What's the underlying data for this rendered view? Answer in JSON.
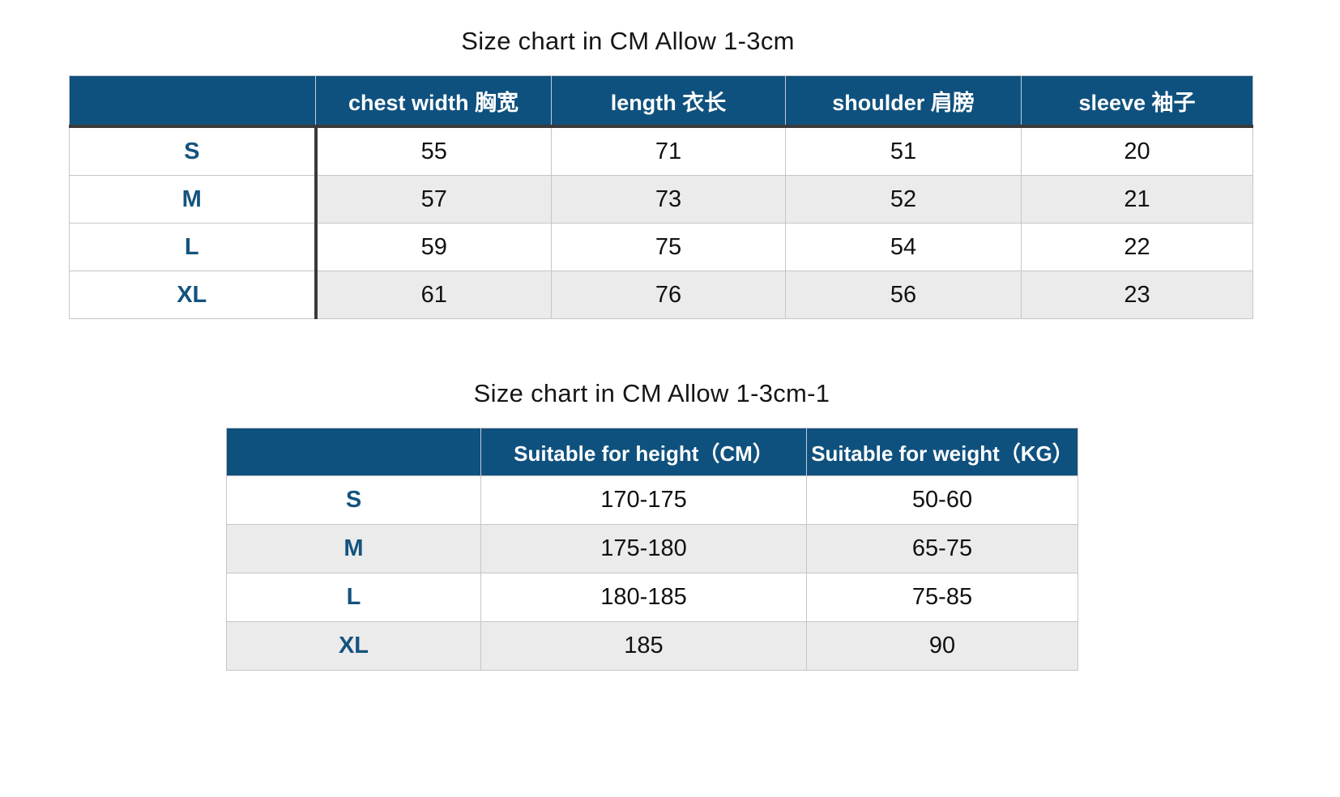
{
  "colors": {
    "header_bg": "#0f517e",
    "header_text": "#ffffff",
    "size_label": "#14537e",
    "stripe": "#ebebeb",
    "dark_border": "#3a3a3a",
    "light_border": "#c6c6c6",
    "title_text": "#161616",
    "value_text": "#111111"
  },
  "table1": {
    "title": "Size chart in CM Allow 1-3cm",
    "headers": [
      "",
      "chest width 胸宽",
      "length 衣长",
      "shoulder 肩膀",
      "sleeve 袖子"
    ],
    "rows": [
      {
        "size": "S",
        "cells": [
          "55",
          "71",
          "51",
          "20"
        ]
      },
      {
        "size": "M",
        "cells": [
          "57",
          "73",
          "52",
          "21"
        ]
      },
      {
        "size": "L",
        "cells": [
          "59",
          "75",
          "54",
          "22"
        ]
      },
      {
        "size": "XL",
        "cells": [
          "61",
          "76",
          "56",
          "23"
        ]
      }
    ]
  },
  "table2": {
    "title": "Size chart in CM Allow 1-3cm-1",
    "headers": [
      "",
      "Suitable for height（CM）",
      "Suitable for weight（KG）"
    ],
    "rows": [
      {
        "size": "S",
        "cells": [
          "170-175",
          "50-60"
        ]
      },
      {
        "size": "M",
        "cells": [
          "175-180",
          "65-75"
        ]
      },
      {
        "size": "L",
        "cells": [
          "180-185",
          "75-85"
        ]
      },
      {
        "size": "XL",
        "cells": [
          "185",
          "90"
        ]
      }
    ]
  },
  "chart_data": [
    {
      "type": "table",
      "title": "Size chart in CM Allow 1-3cm",
      "columns": [
        "size",
        "chest width 胸宽",
        "length 衣长",
        "shoulder 肩膀",
        "sleeve 袖子"
      ],
      "rows": [
        [
          "S",
          55,
          71,
          51,
          20
        ],
        [
          "M",
          57,
          73,
          52,
          21
        ],
        [
          "L",
          59,
          75,
          54,
          22
        ],
        [
          "XL",
          61,
          76,
          56,
          23
        ]
      ]
    },
    {
      "type": "table",
      "title": "Size chart in CM Allow 1-3cm-1",
      "columns": [
        "size",
        "Suitable for height（CM）",
        "Suitable for weight（KG）"
      ],
      "rows": [
        [
          "S",
          "170-175",
          "50-60"
        ],
        [
          "M",
          "175-180",
          "65-75"
        ],
        [
          "L",
          "180-185",
          "75-85"
        ],
        [
          "XL",
          "185",
          "90"
        ]
      ]
    }
  ]
}
